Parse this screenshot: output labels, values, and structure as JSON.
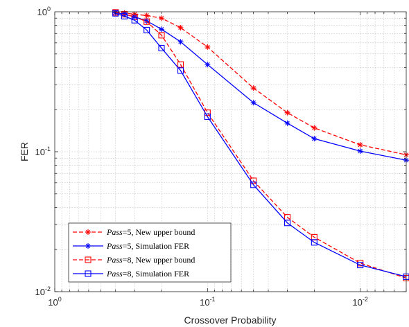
{
  "chart_data": {
    "type": "line",
    "xlabel": "Crossover Probability",
    "ylabel": "FER",
    "x_scale": "log",
    "y_scale": "log",
    "x_reversed": true,
    "xlim": [
      1,
      0.005
    ],
    "ylim": [
      0.01,
      1
    ],
    "grid": true,
    "legend_position": "bottom-left",
    "x_ticks": [
      {
        "value": 1,
        "base": "10",
        "exp": "0"
      },
      {
        "value": 0.1,
        "base": "10",
        "exp": "-1"
      },
      {
        "value": 0.01,
        "base": "10",
        "exp": "-2"
      }
    ],
    "y_ticks": [
      {
        "value": 0.01,
        "base": "10",
        "exp": "-2"
      },
      {
        "value": 0.1,
        "base": "10",
        "exp": "-1"
      },
      {
        "value": 1,
        "base": "10",
        "exp": "0"
      }
    ],
    "series": [
      {
        "name_italic": "Pass",
        "name_rest": "=5, New upper bound",
        "color": "#ff0000",
        "dash": "dashed",
        "marker": "star",
        "x": [
          0.4,
          0.35,
          0.3,
          0.25,
          0.2,
          0.15,
          0.1,
          0.05,
          0.03,
          0.02,
          0.01,
          0.005
        ],
        "y": [
          0.99,
          0.98,
          0.96,
          0.94,
          0.9,
          0.77,
          0.56,
          0.285,
          0.19,
          0.148,
          0.112,
          0.095
        ]
      },
      {
        "name_italic": "Pass",
        "name_rest": "=5, Simulation FER",
        "color": "#0000ff",
        "dash": "solid",
        "marker": "star",
        "x": [
          0.4,
          0.35,
          0.3,
          0.25,
          0.2,
          0.15,
          0.1,
          0.05,
          0.03,
          0.02,
          0.01,
          0.005
        ],
        "y": [
          0.985,
          0.96,
          0.92,
          0.86,
          0.75,
          0.61,
          0.42,
          0.224,
          0.16,
          0.124,
          0.101,
          0.087
        ]
      },
      {
        "name_italic": "Pass",
        "name_rest": "=8, New upper bound",
        "color": "#ff0000",
        "dash": "dashed",
        "marker": "square",
        "x": [
          0.4,
          0.35,
          0.3,
          0.25,
          0.2,
          0.15,
          0.1,
          0.05,
          0.03,
          0.02,
          0.01,
          0.005
        ],
        "y": [
          0.99,
          0.96,
          0.92,
          0.85,
          0.68,
          0.42,
          0.19,
          0.062,
          0.034,
          0.0245,
          0.016,
          0.0125
        ]
      },
      {
        "name_italic": "Pass",
        "name_rest": "=8, Simulation FER",
        "color": "#0000ff",
        "dash": "solid",
        "marker": "square",
        "x": [
          0.4,
          0.35,
          0.3,
          0.25,
          0.2,
          0.15,
          0.1,
          0.05,
          0.03,
          0.02,
          0.01,
          0.005
        ],
        "y": [
          0.975,
          0.93,
          0.87,
          0.74,
          0.55,
          0.38,
          0.178,
          0.058,
          0.031,
          0.0225,
          0.0155,
          0.0128
        ]
      }
    ]
  }
}
